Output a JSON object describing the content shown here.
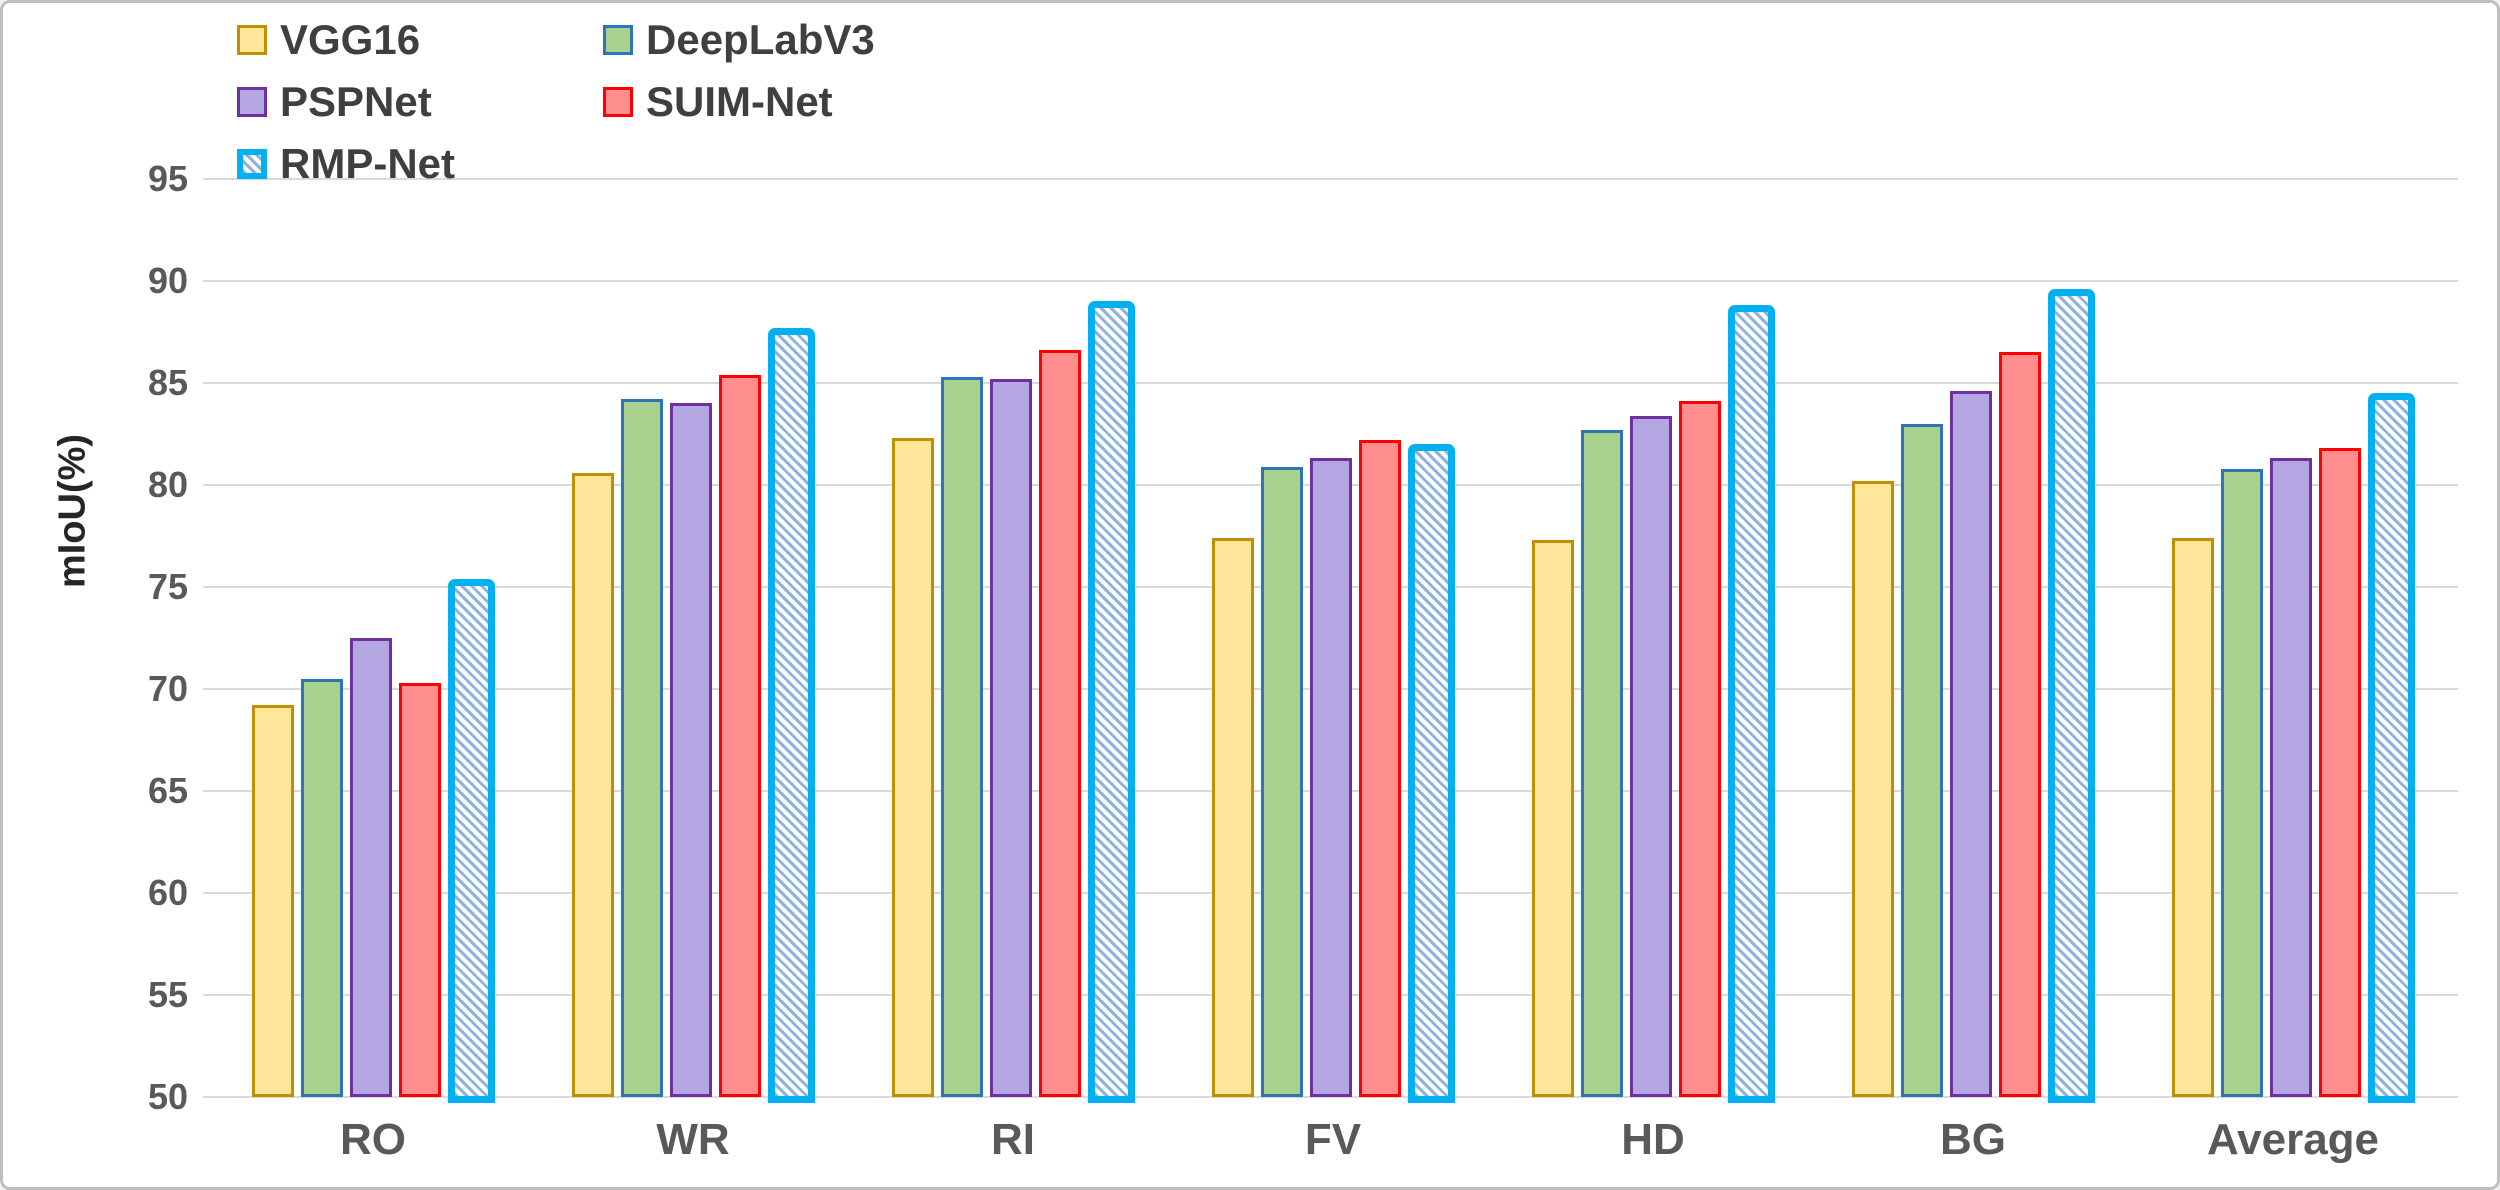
{
  "chart_data": {
    "type": "bar",
    "title": "",
    "xlabel": "",
    "ylabel": "mIoU(%)",
    "ylim": [
      50,
      95
    ],
    "yticks": [
      50,
      55,
      60,
      65,
      70,
      75,
      80,
      85,
      90,
      95
    ],
    "grid": true,
    "legend_position": "top-left",
    "categories": [
      "RO",
      "WR",
      "RI",
      "FV",
      "HD",
      "BG",
      "Average"
    ],
    "series": [
      {
        "name": "VGG16",
        "fill": "#FFE699",
        "border": "#BF9000",
        "pattern": "solid",
        "values": [
          69.2,
          80.6,
          82.3,
          77.4,
          77.3,
          80.2,
          77.4
        ]
      },
      {
        "name": "DeepLabV3",
        "fill": "#A9D18E",
        "border": "#2E75B6",
        "pattern": "solid",
        "values": [
          70.5,
          84.2,
          85.3,
          80.9,
          82.7,
          83.0,
          80.8
        ]
      },
      {
        "name": "PSPNet",
        "fill": "#B4A7E1",
        "border": "#7030A0",
        "pattern": "solid",
        "values": [
          72.5,
          84.0,
          85.2,
          81.3,
          83.4,
          84.6,
          81.3
        ]
      },
      {
        "name": "SUIM-Net",
        "fill": "#FF8E8E",
        "border": "#FF0000",
        "pattern": "solid",
        "values": [
          70.3,
          85.4,
          86.6,
          82.2,
          84.1,
          86.5,
          81.8
        ]
      },
      {
        "name": "RMP-Net",
        "fill": "#FFFFFF",
        "border": "#00B0F0",
        "pattern": "diagonal-hatch",
        "hatch_color": "#8FB3E0",
        "values": [
          75.4,
          87.7,
          89.0,
          82.0,
          88.8,
          89.6,
          84.5
        ]
      }
    ],
    "colors": {
      "gridline": "#D9D9D9",
      "tick_text": "#595959",
      "category_text": "#595959",
      "legend_text": "#3F3F3F",
      "axis_title_text": "#262626",
      "frame": "#BFBFBF",
      "background": "#FFFFFF"
    }
  }
}
